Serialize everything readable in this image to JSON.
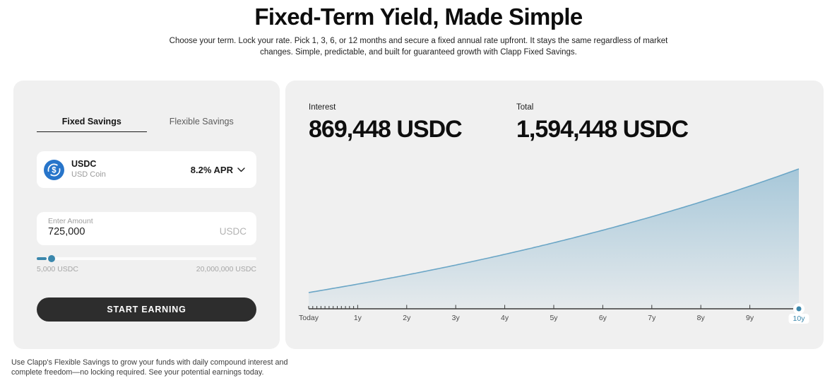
{
  "page": {
    "title": "Fixed-Term Yield, Made Simple",
    "subtitle": "Choose your term. Lock your rate. Pick 1, 3, 6, or 12 months and secure a fixed annual rate upfront. It stays the same regardless of market changes. Simple, predictable, and built for guaranteed growth with Clapp Fixed Savings.",
    "footer": "Use Clapp's Flexible Savings to grow your funds with daily compound interest and complete freedom—no locking required. See your potential earnings today."
  },
  "calculator": {
    "tabs": [
      {
        "label": "Fixed Savings",
        "active": true
      },
      {
        "label": "Flexible Savings",
        "active": false
      }
    ],
    "asset": {
      "symbol": "USDC",
      "name": "USD Coin",
      "apr_label": "8.2% APR",
      "icon": "usdc-coin-icon"
    },
    "amount": {
      "label": "Enter Amount",
      "value": "725,000",
      "unit": "USDC"
    },
    "slider": {
      "min_label": "5,000 USDC",
      "max_label": "20,000,000 USDC",
      "percent": 3.6
    },
    "cta_label": "START EARNING"
  },
  "results": {
    "interest": {
      "label": "Interest",
      "value": "869,448 USDC"
    },
    "total": {
      "label": "Total",
      "value": "1,594,448 USDC"
    }
  },
  "chart_data": {
    "type": "area",
    "title": "Projected compound growth of deposit",
    "x_labels": [
      "Today",
      "1y",
      "2y",
      "3y",
      "4y",
      "5y",
      "6y",
      "7y",
      "8y",
      "9y",
      "10y"
    ],
    "selected_x": "10y",
    "years": 10,
    "principal": 725000,
    "apr_percent": 8.2,
    "values": [
      725000,
      784450,
      848775,
      918374,
      993681,
      1075163,
      1163326,
      1258719,
      1361934,
      1473613,
      1594449
    ],
    "ylim": [
      725000,
      1594449
    ],
    "minor_ticks_first_segment": 12,
    "grid": false,
    "legend": false
  },
  "colors": {
    "accent": "#3b87ac",
    "chart_line": "#6ba6c6",
    "usdc_blue": "#2775CA",
    "button_bg": "#2d2d2d",
    "card_bg": "#f0f0f0"
  }
}
